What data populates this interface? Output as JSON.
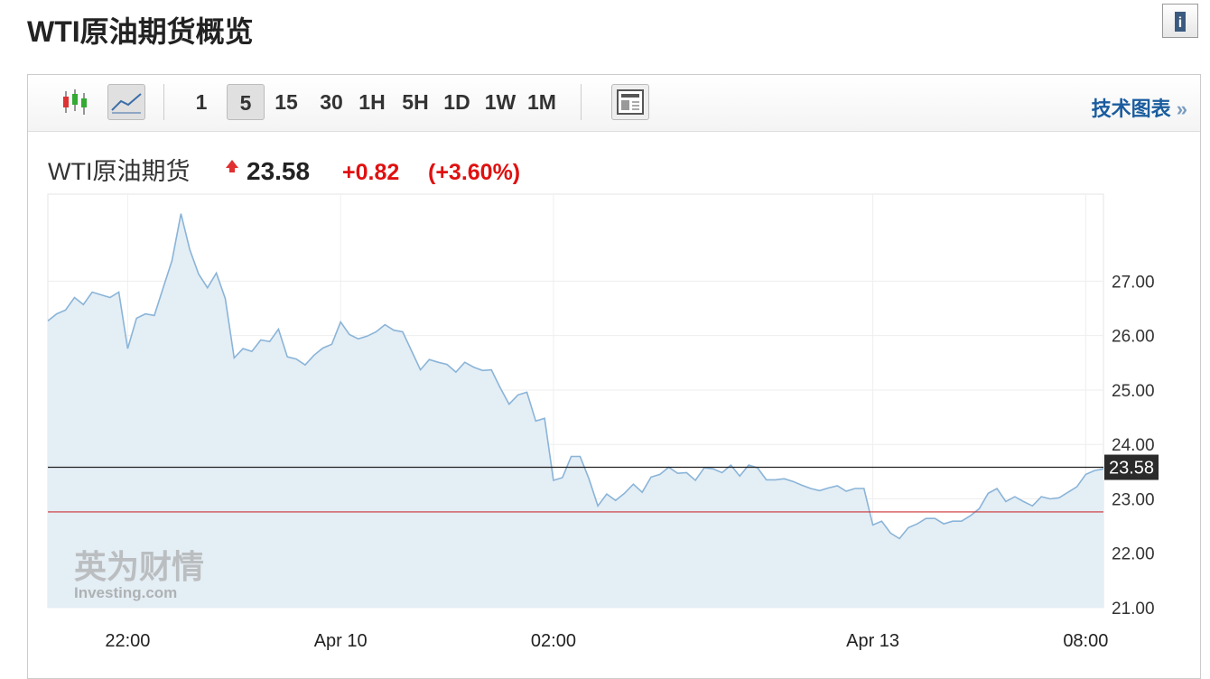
{
  "header": {
    "title": "WTI原油期货概览",
    "name": "WTI原油期货",
    "price": "23.58",
    "change": "+0.82",
    "change_percent": "(+3.60%)"
  },
  "toolbar": {
    "periods": [
      "1",
      "5",
      "15",
      "30",
      "1H",
      "5H",
      "1D",
      "1W",
      "1M"
    ],
    "active_period": "5",
    "link": "技术图表",
    "link_arrow": "»"
  },
  "chart_data": {
    "type": "area",
    "watermark": "英为财情",
    "watermark_sub": "Investing.com",
    "x": [
      0,
      1,
      2,
      3,
      4,
      5,
      6,
      7,
      8,
      9,
      10,
      11,
      12,
      13,
      14,
      15,
      16,
      17,
      18,
      19,
      20,
      21,
      22,
      23,
      24,
      25,
      26,
      27,
      28,
      29,
      30,
      31,
      32,
      33,
      34,
      35,
      36,
      37,
      38,
      39,
      40,
      41,
      42,
      43,
      44,
      45,
      46,
      47,
      48,
      49,
      50,
      51,
      52,
      53,
      54,
      55,
      56,
      57,
      58,
      59,
      60,
      61,
      62,
      63,
      64,
      65,
      66,
      67,
      68,
      69,
      70,
      71,
      72,
      73,
      74,
      75,
      76,
      77,
      78,
      79,
      80,
      81,
      82,
      83,
      84,
      85,
      86,
      87,
      88,
      89,
      90,
      91,
      92,
      93,
      94,
      95,
      96,
      97,
      98,
      99,
      100,
      101,
      102,
      103,
      104,
      105,
      106,
      107,
      108,
      109,
      110,
      111,
      112,
      113,
      114,
      115,
      116,
      117,
      118,
      119
    ],
    "series": [
      {
        "name": "WTI原油期货",
        "color": "#8ab4d8",
        "fill": "#e4eef5",
        "values": [
          26.27,
          26.4,
          26.47,
          26.7,
          26.57,
          26.8,
          26.75,
          26.7,
          26.8,
          25.76,
          26.32,
          26.4,
          26.37,
          26.88,
          27.38,
          28.24,
          27.58,
          27.13,
          26.88,
          27.15,
          26.68,
          25.59,
          25.76,
          25.71,
          25.92,
          25.89,
          26.12,
          25.61,
          25.57,
          25.46,
          25.64,
          25.77,
          25.84,
          26.25,
          26.02,
          25.94,
          25.99,
          26.07,
          26.2,
          26.1,
          26.07,
          25.72,
          25.37,
          25.56,
          25.51,
          25.47,
          25.33,
          25.51,
          25.42,
          25.36,
          25.37,
          25.04,
          24.74,
          24.91,
          24.96,
          24.43,
          24.48,
          23.34,
          23.39,
          23.78,
          23.78,
          23.37,
          22.87,
          23.09,
          22.97,
          23.1,
          23.27,
          23.12,
          23.4,
          23.45,
          23.58,
          23.47,
          23.48,
          23.34,
          23.57,
          23.55,
          23.48,
          23.62,
          23.42,
          23.62,
          23.57,
          23.35,
          23.35,
          23.37,
          23.32,
          23.25,
          23.19,
          23.15,
          23.2,
          23.24,
          23.14,
          23.19,
          23.19,
          22.52,
          22.59,
          22.37,
          22.27,
          22.47,
          22.54,
          22.64,
          22.64,
          22.54,
          22.59,
          22.59,
          22.69,
          22.82,
          23.1,
          23.19,
          22.95,
          23.04,
          22.95,
          22.87,
          23.04,
          23.0,
          23.02,
          23.12,
          23.22,
          23.45,
          23.52,
          23.55
        ]
      }
    ],
    "reference_lines": [
      {
        "value": 23.58,
        "color": "#222222",
        "label": "23.58"
      },
      {
        "value": 22.76,
        "color": "#cc3333"
      }
    ],
    "xlim": [
      0,
      119
    ],
    "ylim": [
      21,
      28.6
    ],
    "xticks": [
      {
        "value": 9,
        "label": "22:00"
      },
      {
        "value": 33,
        "label": "Apr 10"
      },
      {
        "value": 57,
        "label": "02:00"
      },
      {
        "value": 93,
        "label": "Apr 13"
      },
      {
        "value": 117,
        "label": "08:00"
      }
    ],
    "yticks": [
      {
        "value": 21,
        "label": "21.00"
      },
      {
        "value": 22,
        "label": "22.00"
      },
      {
        "value": 23,
        "label": "23.00"
      },
      {
        "value": 24,
        "label": "24.00"
      },
      {
        "value": 25,
        "label": "25.00"
      },
      {
        "value": 26,
        "label": "26.00"
      },
      {
        "value": 27,
        "label": "27.00"
      }
    ],
    "grid": true
  }
}
